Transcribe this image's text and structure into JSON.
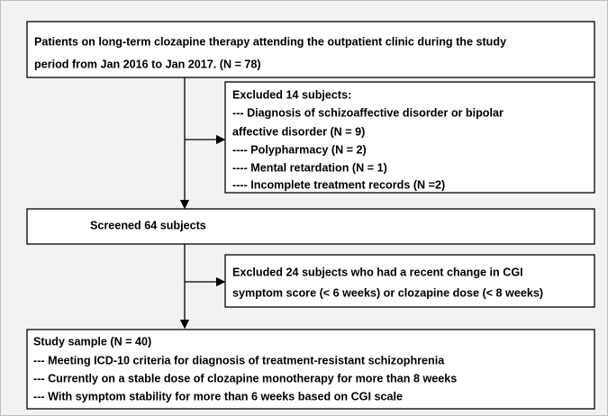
{
  "boxes": [
    {
      "lines": [
        "Patients on long-term clozapine therapy attending the outpatient clinic during the study",
        "period from Jan 2016 to Jan 2017. (N = 78)"
      ]
    },
    {
      "lines": [
        "Excluded 14 subjects:",
        "--- Diagnosis of schizoaffective disorder or bipolar",
        "affective disorder (N = 9)",
        "---- Polypharmacy (N = 2)",
        "---- Mental retardation (N = 1)",
        "---- Incomplete treatment records (N =2)"
      ]
    },
    {
      "lines": [
        "Screened 64 subjects"
      ]
    },
    {
      "lines": [
        "Excluded 24 subjects who had a recent change in CGI",
        "symptom score (< 6 weeks) or clozapine dose (< 8 weeks)"
      ]
    },
    {
      "lines": [
        "Study sample (N = 40)",
        "--- Meeting ICD-10 criteria for diagnosis of treatment-resistant schizophrenia",
        "--- Currently on a stable dose of clozapine monotherapy for more than 8 weeks",
        "--- With symptom stability for more than 6 weeks based on CGI scale"
      ]
    }
  ]
}
